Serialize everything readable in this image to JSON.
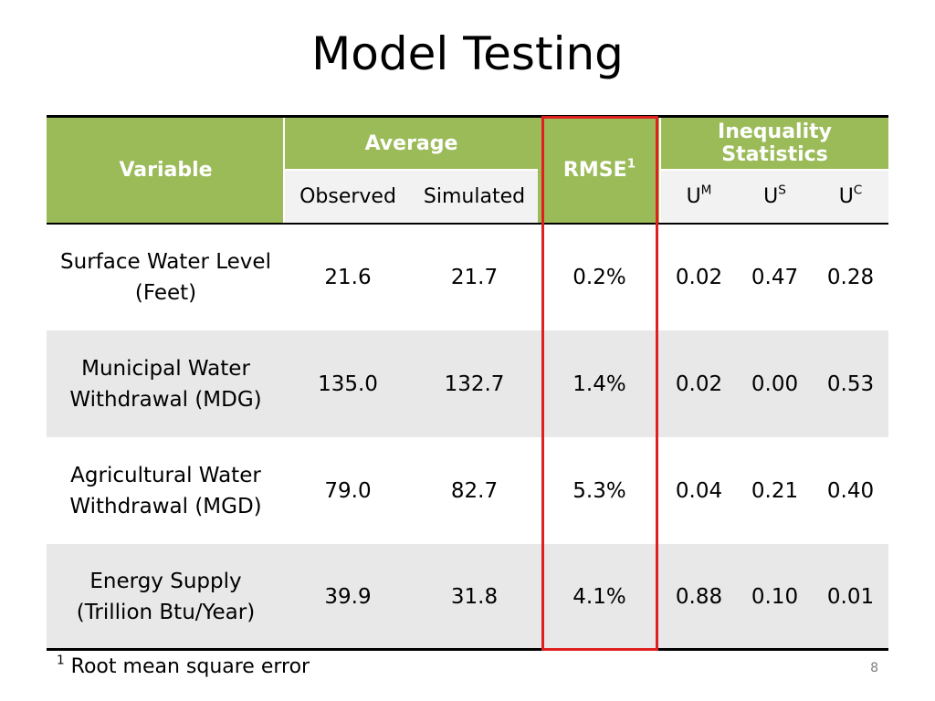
{
  "page": {
    "title": "Model Testing",
    "page_number": "8"
  },
  "colors": {
    "header_green": "#9bbb59",
    "subheader_gray": "#f2f2f2",
    "band_gray": "#e8e8e8",
    "highlight_red": "#e02020"
  },
  "table": {
    "headers": {
      "variable": "Variable",
      "average": "Average",
      "observed": "Observed",
      "simulated": "Simulated",
      "rmse": "RMSE",
      "rmse_sup": "1",
      "inequality": "Inequality Statistics",
      "um_base": "U",
      "um_sup": "M",
      "us_base": "U",
      "us_sup": "S",
      "uc_base": "U",
      "uc_sup": "C"
    },
    "rows": [
      {
        "variable_line1": "Surface Water Level",
        "variable_line2": "(Feet)",
        "observed": "21.6",
        "simulated": "21.7",
        "rmse": "0.2%",
        "um": "0.02",
        "us": "0.47",
        "uc": "0.28"
      },
      {
        "variable_line1": "Municipal Water",
        "variable_line2": "Withdrawal (MDG)",
        "observed": "135.0",
        "simulated": "132.7",
        "rmse": "1.4%",
        "um": "0.02",
        "us": "0.00",
        "uc": "0.53"
      },
      {
        "variable_line1": "Agricultural Water",
        "variable_line2": "Withdrawal (MGD)",
        "observed": "79.0",
        "simulated": "82.7",
        "rmse": "5.3%",
        "um": "0.04",
        "us": "0.21",
        "uc": "0.40"
      },
      {
        "variable_line1": "Energy Supply",
        "variable_line2": "(Trillion Btu/Year)",
        "observed": "39.9",
        "simulated": "31.8",
        "rmse": "4.1%",
        "um": "0.88",
        "us": "0.10",
        "uc": "0.01"
      }
    ]
  },
  "footnote": {
    "marker": "1",
    "text": "Root mean square error"
  }
}
